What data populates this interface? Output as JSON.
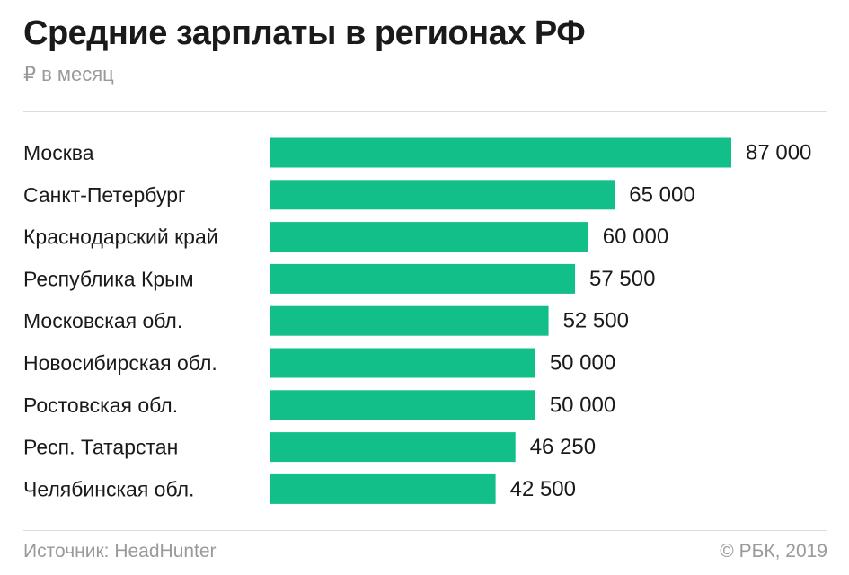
{
  "header": {
    "title": "Средние зарплаты в регионах РФ",
    "subtitle": "₽ в месяц"
  },
  "footer": {
    "source": "Источник: HeadHunter",
    "credit": "© РБК, 2019"
  },
  "chart_data": {
    "type": "bar",
    "orientation": "horizontal",
    "title": "Средние зарплаты в регионах РФ",
    "subtitle": "₽ в месяц",
    "categories": [
      "Москва",
      "Санкт-Петербург",
      "Краснодарский край",
      "Республика Крым",
      "Московская обл.",
      "Новосибирская обл.",
      "Ростовская обл.",
      "Респ. Татарстан",
      "Челябинская обл."
    ],
    "values": [
      87000,
      65000,
      60000,
      57500,
      52500,
      50000,
      50000,
      46250,
      42500
    ],
    "value_labels": [
      "87 000",
      "65 000",
      "60 000",
      "57 500",
      "52 500",
      "50 000",
      "50 000",
      "46 250",
      "42 500"
    ],
    "xlim": [
      0,
      87000
    ],
    "grid": false,
    "legend": "none",
    "bar_color": "#13bf89",
    "text_color": "#1a1a1a"
  }
}
